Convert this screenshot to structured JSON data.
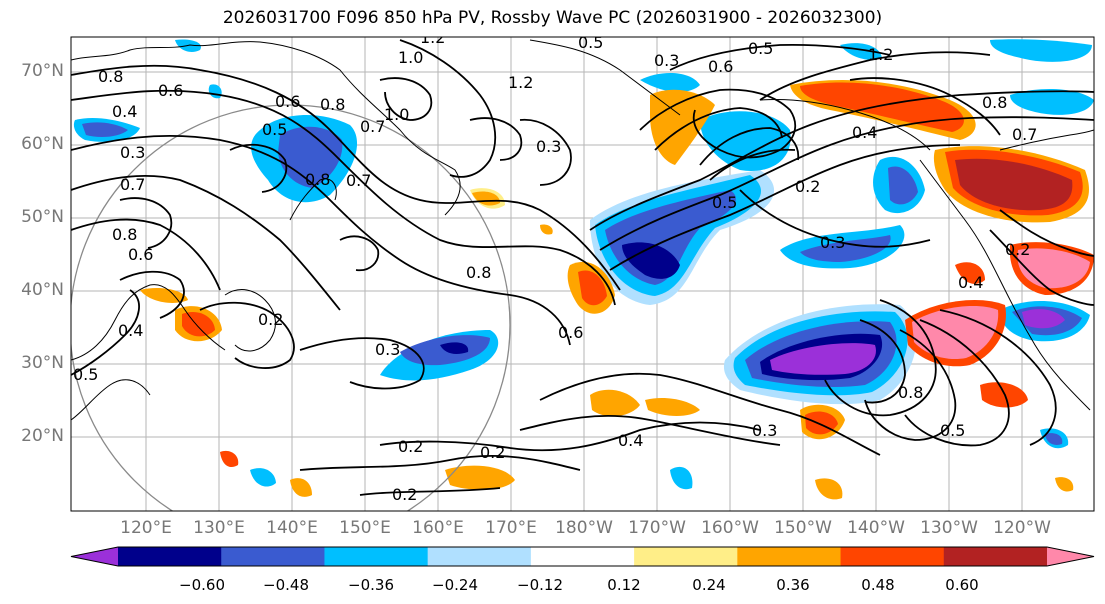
{
  "title": "2026031700 F096 850 hPa PV, Rossby Wave PC (2026031900 - 2026032300)",
  "lat_labels": [
    "70°N",
    "60°N",
    "50°N",
    "40°N",
    "30°N",
    "20°N"
  ],
  "lon_labels": [
    "120°E",
    "130°E",
    "140°E",
    "150°E",
    "160°E",
    "170°E",
    "180°W",
    "170°W",
    "160°W",
    "150°W",
    "140°W",
    "130°W",
    "120°W"
  ],
  "contour_labels": [
    "1.2",
    "1.0",
    "0.8",
    "0.6",
    "0.4",
    "0.3",
    "0.8",
    "0.7",
    "0.6",
    "0.7",
    "0.8",
    "0.6",
    "0.5",
    "0.4",
    "0.5",
    "0.8",
    "0.7",
    "0.2",
    "0.3",
    "0.8",
    "0.6",
    "0.3",
    "0.2",
    "0.2",
    "0.2",
    "0.4",
    "0.3",
    "0.5",
    "0.8",
    "0.5",
    "0.3",
    "0.6",
    "0.5",
    "1.2",
    "0.4",
    "0.8",
    "0.7",
    "0.2",
    "0.3",
    "0.4",
    "0.2",
    "1.0",
    "0.5",
    "1.2"
  ],
  "colorbar": {
    "ticks": [
      "−0.60",
      "−0.48",
      "−0.36",
      "−0.24",
      "−0.12",
      "0.12",
      "0.24",
      "0.36",
      "0.48",
      "0.60"
    ],
    "colors": [
      "#9b30d9",
      "#00008b",
      "#3a5bd0",
      "#00bfff",
      "#b0e0ff",
      "#ffffff",
      "#ffee88",
      "#ffa500",
      "#ff4500",
      "#b22222",
      "#ff88aa"
    ]
  }
}
